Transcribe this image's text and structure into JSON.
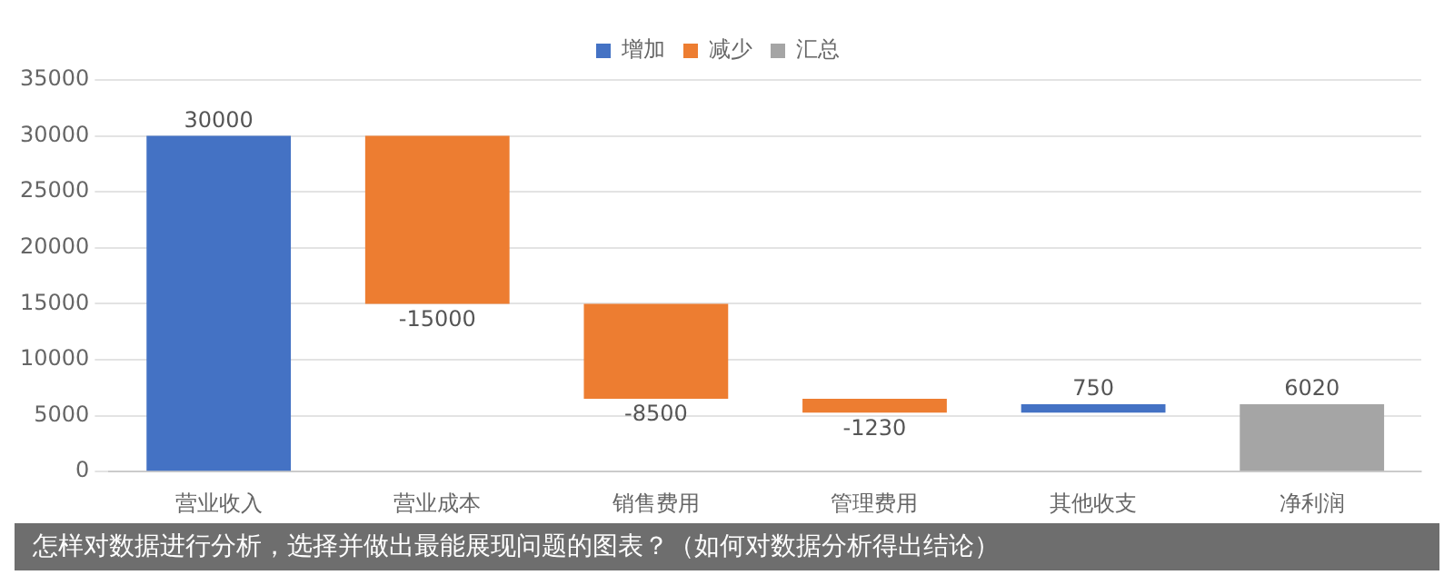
{
  "chart_data": {
    "type": "bar",
    "categories": [
      "营业收入",
      "营业成本",
      "销售费用",
      "管理费用",
      "其他收支",
      "净利润"
    ],
    "series": [
      {
        "name": "增加",
        "color": "#4472c4",
        "values": [
          30000,
          null,
          null,
          null,
          750,
          null
        ],
        "base": [
          0,
          null,
          null,
          null,
          5270,
          null
        ]
      },
      {
        "name": "减少",
        "color": "#ed7d31",
        "values": [
          null,
          -15000,
          -8500,
          -1230,
          null,
          null
        ],
        "base": [
          null,
          30000,
          15000,
          6500,
          null,
          null
        ]
      },
      {
        "name": "汇总",
        "color": "#a5a5a5",
        "values": [
          null,
          null,
          null,
          null,
          null,
          6020
        ],
        "base": [
          null,
          null,
          null,
          null,
          null,
          0
        ]
      }
    ],
    "ylim": [
      0,
      35000
    ],
    "yticks": [
      0,
      5000,
      10000,
      15000,
      20000,
      25000,
      30000,
      35000
    ],
    "grid": "y",
    "legend": "top",
    "data_labels": true,
    "annotations": [
      "怎样对数据进行分析，选择并做出最能展现问题的图表？（如何对数据分析得出结论）"
    ]
  }
}
